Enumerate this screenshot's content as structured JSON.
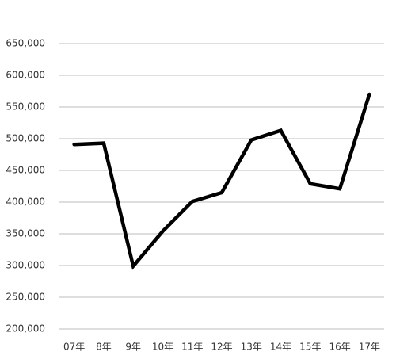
{
  "chart_data": {
    "type": "line",
    "categories": [
      "07年",
      "8年",
      "9年",
      "10年",
      "11年",
      "12年",
      "13年",
      "14年",
      "15年",
      "16年",
      "17年"
    ],
    "series": [
      {
        "color": "#000000",
        "values": [
          491000,
          493000,
          299000,
          354000,
          401000,
          415000,
          498000,
          513000,
          429000,
          421000,
          570000
        ]
      }
    ],
    "ylim": [
      200000,
      650000
    ],
    "yticks": [
      {
        "value": 200000,
        "label": "200,000"
      },
      {
        "value": 250000,
        "label": "250,000"
      },
      {
        "value": 300000,
        "label": "300,000"
      },
      {
        "value": 350000,
        "label": "350,000"
      },
      {
        "value": 400000,
        "label": "400,000"
      },
      {
        "value": 450000,
        "label": "450,000"
      },
      {
        "value": 500000,
        "label": "500,000"
      },
      {
        "value": 550000,
        "label": "550,000"
      },
      {
        "value": 600000,
        "label": "600,000"
      },
      {
        "value": 650000,
        "label": "650,000"
      }
    ],
    "grid": true
  }
}
